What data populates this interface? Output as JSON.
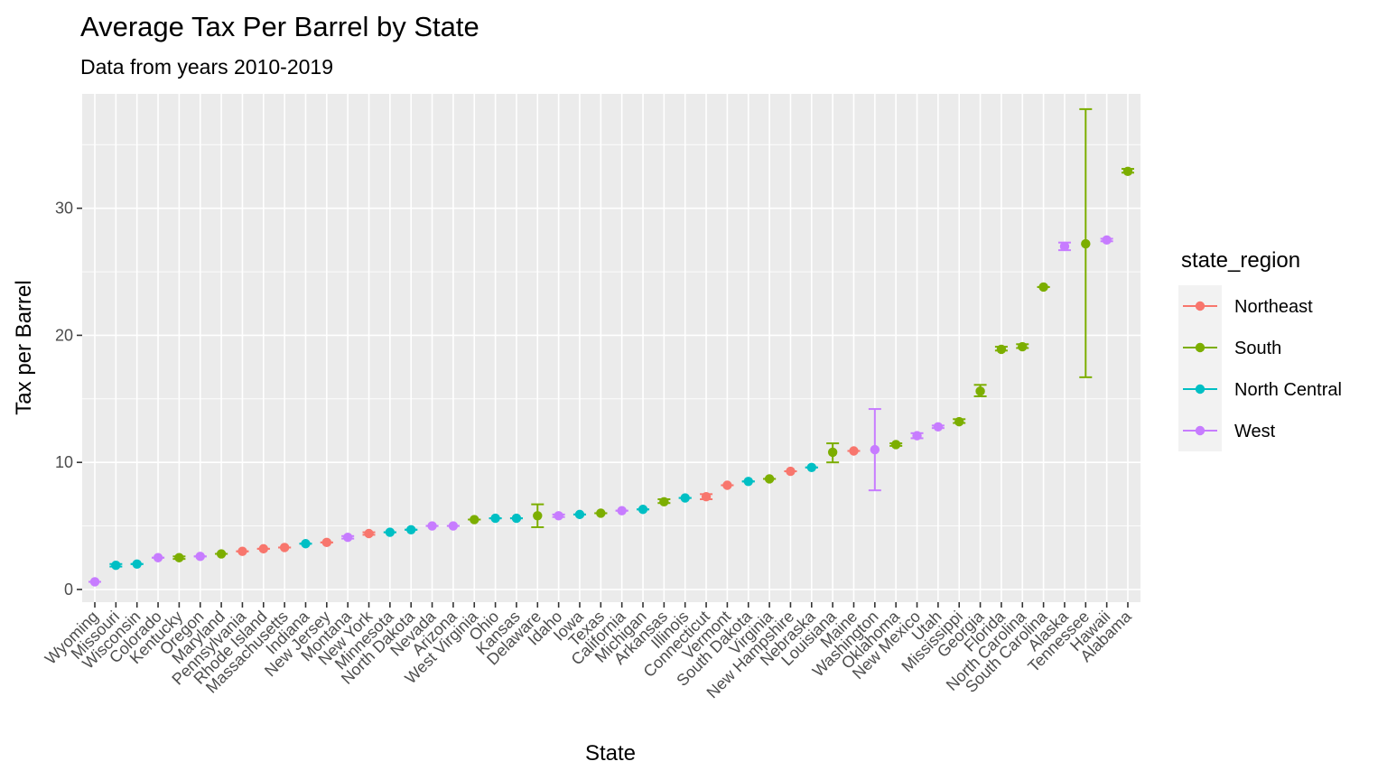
{
  "chart_data": {
    "type": "scatter",
    "title": "Average Tax Per Barrel by State",
    "subtitle": "Data from years 2010-2019",
    "xlabel": "State",
    "ylabel": "Tax per Barrel",
    "ylim": [
      -1.0,
      39.0
    ],
    "yticks": [
      0,
      10,
      20,
      30
    ],
    "grid": true,
    "legend": {
      "title": "state_region",
      "position": "right",
      "entries": [
        {
          "name": "Northeast",
          "color": "#F8766D"
        },
        {
          "name": "South",
          "color": "#7CAE00"
        },
        {
          "name": "North Central",
          "color": "#00BFC4"
        },
        {
          "name": "West",
          "color": "#C77CFF"
        }
      ]
    },
    "points": [
      {
        "state": "Wyoming",
        "region": "West",
        "y": 0.6,
        "lo": 0.6,
        "hi": 0.6
      },
      {
        "state": "Missouri",
        "region": "North Central",
        "y": 1.9,
        "lo": 1.8,
        "hi": 2.0
      },
      {
        "state": "Wisconsin",
        "region": "North Central",
        "y": 2.0,
        "lo": 2.0,
        "hi": 2.0
      },
      {
        "state": "Colorado",
        "region": "West",
        "y": 2.5,
        "lo": 2.5,
        "hi": 2.5
      },
      {
        "state": "Kentucky",
        "region": "South",
        "y": 2.5,
        "lo": 2.4,
        "hi": 2.6
      },
      {
        "state": "Oregon",
        "region": "West",
        "y": 2.6,
        "lo": 2.6,
        "hi": 2.6
      },
      {
        "state": "Maryland",
        "region": "South",
        "y": 2.8,
        "lo": 2.8,
        "hi": 2.8
      },
      {
        "state": "Pennsylvania",
        "region": "Northeast",
        "y": 3.0,
        "lo": 3.0,
        "hi": 3.0
      },
      {
        "state": "Rhode Island",
        "region": "Northeast",
        "y": 3.2,
        "lo": 3.2,
        "hi": 3.2
      },
      {
        "state": "Massachusetts",
        "region": "Northeast",
        "y": 3.3,
        "lo": 3.3,
        "hi": 3.3
      },
      {
        "state": "Indiana",
        "region": "North Central",
        "y": 3.6,
        "lo": 3.6,
        "hi": 3.6
      },
      {
        "state": "New Jersey",
        "region": "Northeast",
        "y": 3.7,
        "lo": 3.7,
        "hi": 3.7
      },
      {
        "state": "Montana",
        "region": "West",
        "y": 4.1,
        "lo": 4.0,
        "hi": 4.2
      },
      {
        "state": "New York",
        "region": "Northeast",
        "y": 4.4,
        "lo": 4.3,
        "hi": 4.5
      },
      {
        "state": "Minnesota",
        "region": "North Central",
        "y": 4.5,
        "lo": 4.5,
        "hi": 4.5
      },
      {
        "state": "North Dakota",
        "region": "North Central",
        "y": 4.7,
        "lo": 4.7,
        "hi": 4.7
      },
      {
        "state": "Nevada",
        "region": "West",
        "y": 5.0,
        "lo": 5.0,
        "hi": 5.0
      },
      {
        "state": "Arizona",
        "region": "West",
        "y": 5.0,
        "lo": 5.0,
        "hi": 5.0
      },
      {
        "state": "West Virginia",
        "region": "South",
        "y": 5.5,
        "lo": 5.5,
        "hi": 5.5
      },
      {
        "state": "Ohio",
        "region": "North Central",
        "y": 5.6,
        "lo": 5.6,
        "hi": 5.6
      },
      {
        "state": "Kansas",
        "region": "North Central",
        "y": 5.6,
        "lo": 5.6,
        "hi": 5.6
      },
      {
        "state": "Delaware",
        "region": "South",
        "y": 5.8,
        "lo": 4.9,
        "hi": 6.7
      },
      {
        "state": "Idaho",
        "region": "West",
        "y": 5.8,
        "lo": 5.7,
        "hi": 5.9
      },
      {
        "state": "Iowa",
        "region": "North Central",
        "y": 5.9,
        "lo": 5.9,
        "hi": 5.9
      },
      {
        "state": "Texas",
        "region": "South",
        "y": 6.0,
        "lo": 6.0,
        "hi": 6.0
      },
      {
        "state": "California",
        "region": "West",
        "y": 6.2,
        "lo": 6.2,
        "hi": 6.2
      },
      {
        "state": "Michigan",
        "region": "North Central",
        "y": 6.3,
        "lo": 6.3,
        "hi": 6.3
      },
      {
        "state": "Arkansas",
        "region": "South",
        "y": 6.9,
        "lo": 6.8,
        "hi": 7.1
      },
      {
        "state": "Illinois",
        "region": "North Central",
        "y": 7.2,
        "lo": 7.2,
        "hi": 7.2
      },
      {
        "state": "Connecticut",
        "region": "Northeast",
        "y": 7.3,
        "lo": 7.1,
        "hi": 7.5
      },
      {
        "state": "Vermont",
        "region": "Northeast",
        "y": 8.2,
        "lo": 8.2,
        "hi": 8.2
      },
      {
        "state": "South Dakota",
        "region": "North Central",
        "y": 8.5,
        "lo": 8.5,
        "hi": 8.5
      },
      {
        "state": "Virginia",
        "region": "South",
        "y": 8.7,
        "lo": 8.7,
        "hi": 8.7
      },
      {
        "state": "New Hampshire",
        "region": "Northeast",
        "y": 9.3,
        "lo": 9.3,
        "hi": 9.3
      },
      {
        "state": "Nebraska",
        "region": "North Central",
        "y": 9.6,
        "lo": 9.6,
        "hi": 9.6
      },
      {
        "state": "Louisiana",
        "region": "South",
        "y": 10.8,
        "lo": 10.0,
        "hi": 11.5
      },
      {
        "state": "Maine",
        "region": "Northeast",
        "y": 10.9,
        "lo": 10.9,
        "hi": 10.9
      },
      {
        "state": "Washington",
        "region": "West",
        "y": 11.0,
        "lo": 7.8,
        "hi": 14.2
      },
      {
        "state": "Oklahoma",
        "region": "South",
        "y": 11.4,
        "lo": 11.3,
        "hi": 11.5
      },
      {
        "state": "New Mexico",
        "region": "West",
        "y": 12.1,
        "lo": 11.9,
        "hi": 12.3
      },
      {
        "state": "Utah",
        "region": "West",
        "y": 12.8,
        "lo": 12.7,
        "hi": 12.9
      },
      {
        "state": "Mississippi",
        "region": "South",
        "y": 13.2,
        "lo": 13.1,
        "hi": 13.4
      },
      {
        "state": "Georgia",
        "region": "South",
        "y": 15.6,
        "lo": 15.2,
        "hi": 16.1
      },
      {
        "state": "Florida",
        "region": "South",
        "y": 18.9,
        "lo": 18.8,
        "hi": 19.1
      },
      {
        "state": "North Carolina",
        "region": "South",
        "y": 19.1,
        "lo": 19.0,
        "hi": 19.3
      },
      {
        "state": "South Carolina",
        "region": "South",
        "y": 23.8,
        "lo": 23.8,
        "hi": 23.8
      },
      {
        "state": "Alaska",
        "region": "West",
        "y": 27.0,
        "lo": 26.7,
        "hi": 27.3
      },
      {
        "state": "Tennessee",
        "region": "South",
        "y": 27.2,
        "lo": 16.7,
        "hi": 37.8
      },
      {
        "state": "Hawaii",
        "region": "West",
        "y": 27.5,
        "lo": 27.4,
        "hi": 27.6
      },
      {
        "state": "Alabama",
        "region": "South",
        "y": 32.9,
        "lo": 32.8,
        "hi": 33.1
      }
    ]
  }
}
